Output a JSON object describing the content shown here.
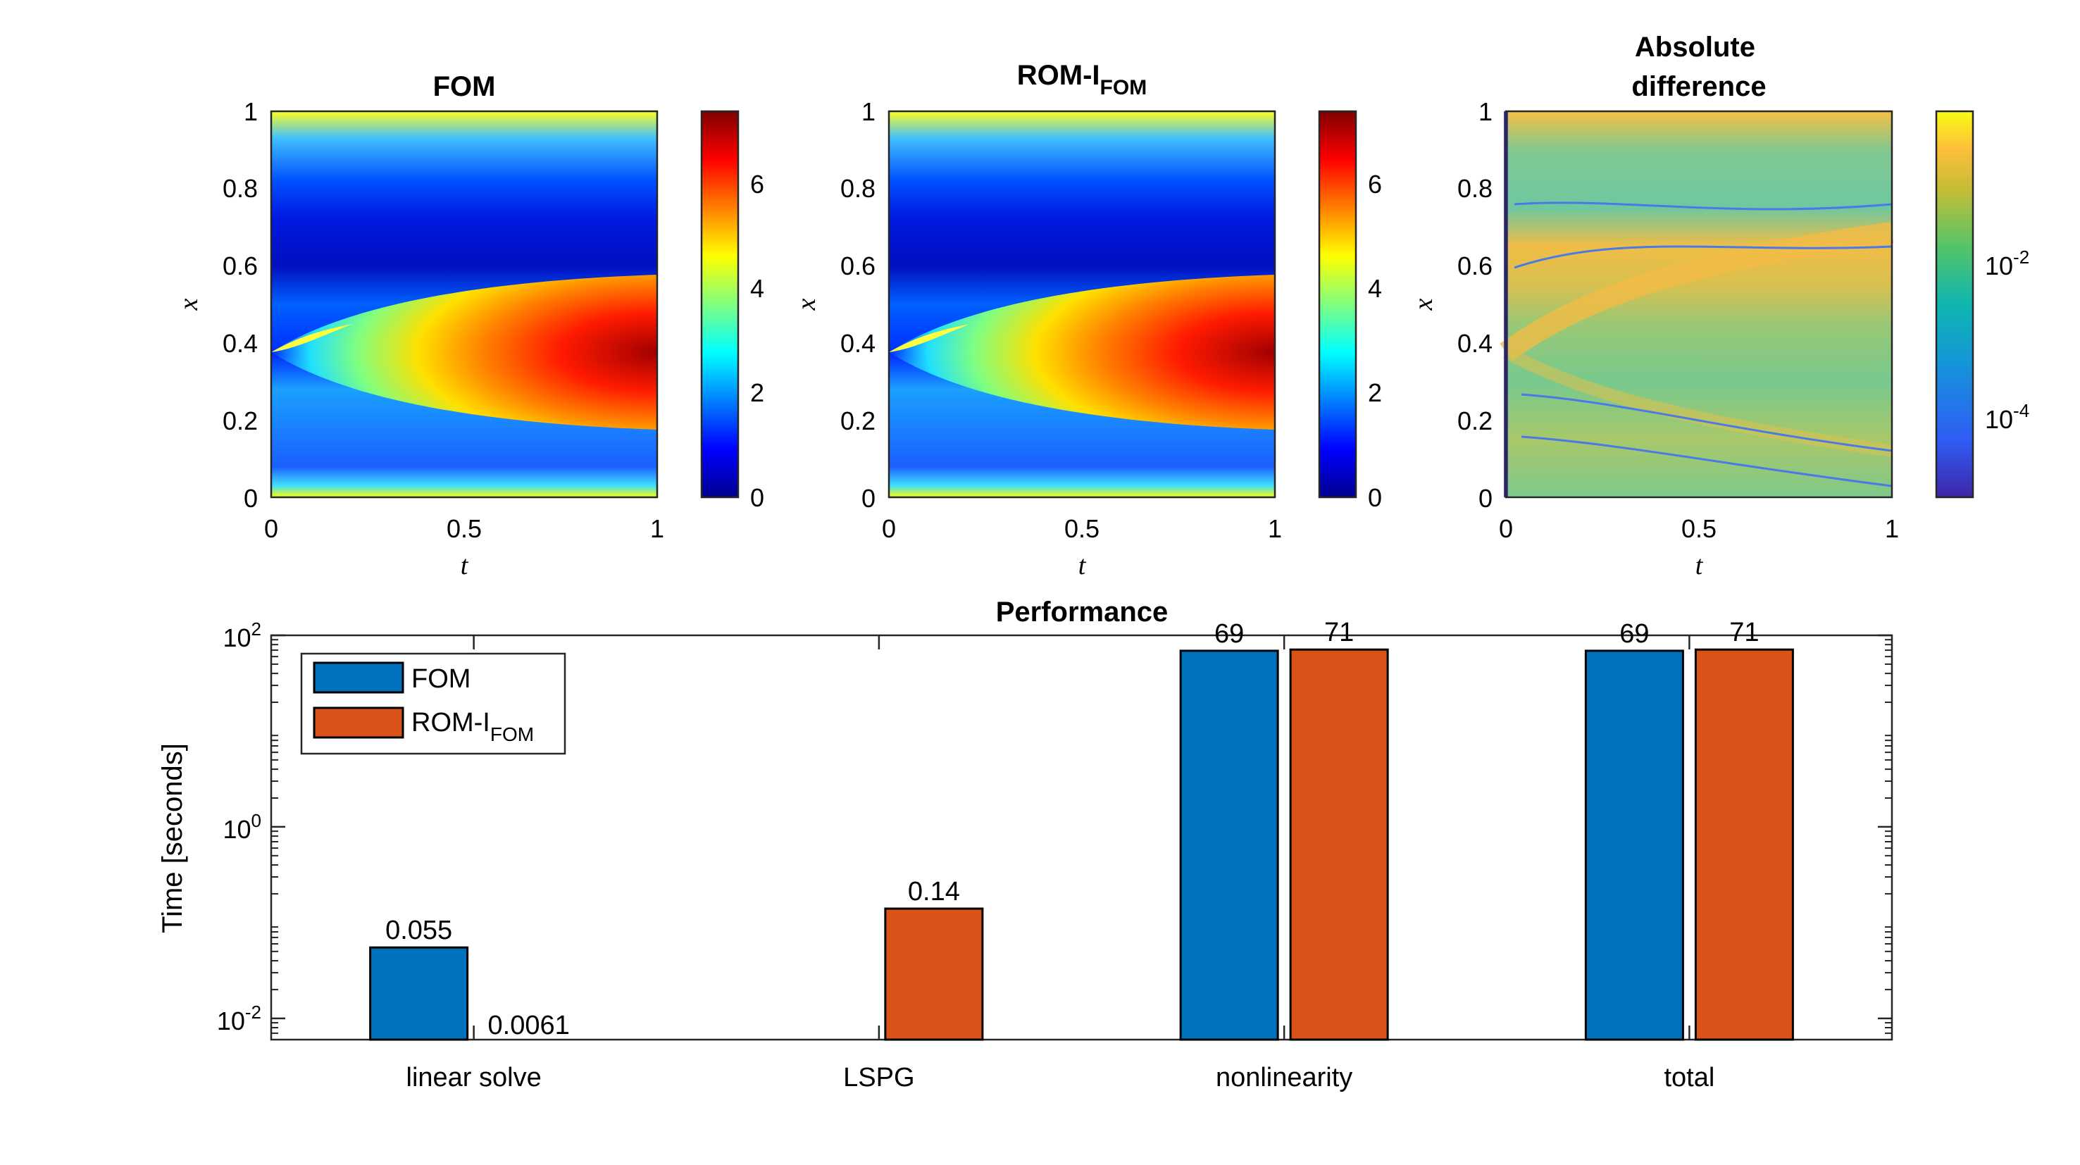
{
  "colors": {
    "fom": "#0072BD",
    "rom": "#D95319"
  },
  "chart_data": [
    {
      "type": "heatmap",
      "title": "FOM",
      "xlabel": "t",
      "ylabel": "x",
      "xlim": [
        0,
        1
      ],
      "ylim": [
        0,
        1
      ],
      "xticks": [
        "0",
        "0.5",
        "1"
      ],
      "yticks": [
        "0",
        "0.2",
        "0.4",
        "0.6",
        "0.8",
        "1"
      ],
      "colormap": "jet",
      "clim": [
        0,
        7.4
      ],
      "colorbar_ticks": [
        "0",
        "2",
        "4",
        "6"
      ]
    },
    {
      "type": "heatmap",
      "title": "ROM-I",
      "title_sub": "FOM",
      "xlabel": "t",
      "ylabel": "x",
      "xlim": [
        0,
        1
      ],
      "ylim": [
        0,
        1
      ],
      "xticks": [
        "0",
        "0.5",
        "1"
      ],
      "yticks": [
        "0",
        "0.2",
        "0.4",
        "0.6",
        "0.8",
        "1"
      ],
      "colormap": "jet",
      "clim": [
        0,
        7.4
      ],
      "colorbar_ticks": [
        "0",
        "2",
        "4",
        "6"
      ]
    },
    {
      "type": "heatmap",
      "title_line1": "Absolute",
      "title_line2": "difference",
      "xlabel": "t",
      "ylabel": "x",
      "xlim": [
        0,
        1
      ],
      "ylim": [
        0,
        1
      ],
      "xticks": [
        "0",
        "0.5",
        "1"
      ],
      "yticks": [
        "0",
        "0.2",
        "0.4",
        "0.6",
        "0.8",
        "1"
      ],
      "colormap": "parula",
      "color_scale": "log",
      "colorbar_ticks": [
        {
          "base": "10",
          "exp": "-2"
        },
        {
          "base": "10",
          "exp": "-4"
        }
      ]
    },
    {
      "type": "bar",
      "title": "Performance",
      "ylabel": "Time [seconds]",
      "yscale": "log",
      "ylim": [
        0.006,
        100
      ],
      "yticks": [
        {
          "base": "10",
          "exp": "2"
        },
        {
          "base": "10",
          "exp": "0"
        },
        {
          "base": "10",
          "exp": "-2"
        }
      ],
      "categories": [
        "linear solve",
        "LSPG",
        "nonlinearity",
        "total"
      ],
      "series": [
        {
          "name": "FOM",
          "values": [
            0.055,
            null,
            69,
            69
          ],
          "labels": [
            "0.055",
            "",
            "69",
            "69"
          ]
        },
        {
          "name": "ROM-I",
          "name_sub": "FOM",
          "values": [
            0.0061,
            0.14,
            71,
            71
          ],
          "labels": [
            "0.0061",
            "0.14",
            "71",
            "71"
          ]
        }
      ],
      "legend": "top-left"
    }
  ]
}
